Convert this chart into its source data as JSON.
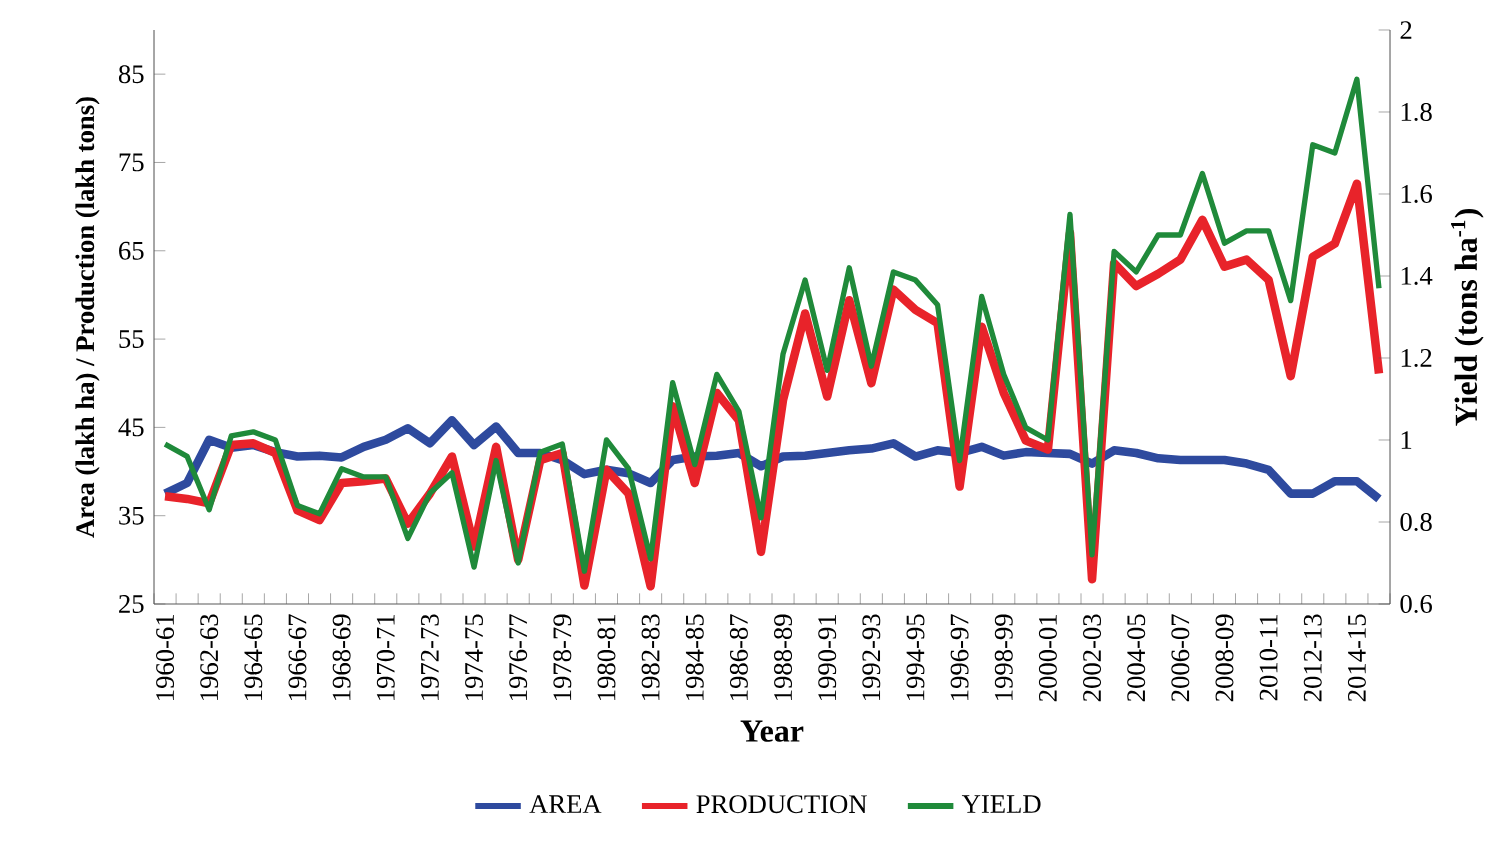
{
  "chart_data": {
    "type": "line",
    "xlabel": "Year",
    "ylabel": "Area (lakh ha) / Production (lakh tons)",
    "y2label": "Yield (tons ha$^{-1}$)",
    "categories": [
      "1960-61",
      null,
      "1962-63",
      null,
      "1964-65",
      null,
      "1966-67",
      null,
      "1968-69",
      null,
      "1970-71",
      null,
      "1972-73",
      null,
      "1974-75",
      null,
      "1976-77",
      null,
      "1978-79",
      null,
      "1980-81",
      null,
      "1982-83",
      null,
      "1984-85",
      null,
      "1986-87",
      null,
      "1988-89",
      null,
      "1990-91",
      null,
      "1992-93",
      null,
      "1994-95",
      null,
      "1996-97",
      null,
      "1998-99",
      null,
      "2000-01",
      null,
      "2002-03",
      null,
      "2004-05",
      null,
      "2006-07",
      null,
      "2008-09",
      null,
      "2010-11",
      null,
      "2012-13",
      null,
      "2014-15",
      null
    ],
    "series": [
      {
        "name": "AREA",
        "color": "#2e4a9e",
        "values": [
          37.5,
          38.7,
          43.6,
          42.7,
          43.0,
          42.2,
          41.7,
          41.8,
          41.6,
          42.8,
          43.6,
          44.9,
          43.2,
          45.8,
          43.0,
          45.1,
          42.1,
          42.1,
          41.3,
          39.7,
          40.2,
          39.8,
          38.7,
          41.3,
          41.7,
          41.8,
          42.1,
          40.6,
          41.7,
          41.8,
          42.1,
          42.4,
          42.6,
          43.2,
          41.7,
          42.4,
          42.1,
          42.8,
          41.8,
          42.2,
          42.1,
          42.0,
          40.9,
          42.4,
          42.1,
          41.5,
          41.3,
          41.3,
          41.3,
          40.9,
          40.2,
          37.5,
          37.5,
          38.9,
          38.9,
          36.9
        ]
      },
      {
        "name": "PRODUCTION",
        "color": "#e8232a",
        "values": [
          37.2,
          36.9,
          36.4,
          43.0,
          43.2,
          42.1,
          35.6,
          34.5,
          38.7,
          38.9,
          39.2,
          34.1,
          37.5,
          41.7,
          31.5,
          42.8,
          30.0,
          41.3,
          42.1,
          27.1,
          40.2,
          37.5,
          27.0,
          47.4,
          38.7,
          48.9,
          45.8,
          30.9,
          48.1,
          57.9,
          48.5,
          59.4,
          50.0,
          60.6,
          58.3,
          56.8,
          38.3,
          56.4,
          48.9,
          43.5,
          42.5,
          67.0,
          27.8,
          63.6,
          61.0,
          62.4,
          64.0,
          68.5,
          63.2,
          64.0,
          61.7,
          50.8,
          64.3,
          65.8,
          72.6,
          51.1
        ]
      },
      {
        "name": "YIELD",
        "color": "#1f8a3a",
        "axis": "y2",
        "values": [
          0.99,
          0.96,
          0.83,
          1.01,
          1.02,
          1.0,
          0.84,
          0.82,
          0.93,
          0.91,
          0.91,
          0.76,
          0.87,
          0.92,
          0.69,
          0.95,
          0.7,
          0.97,
          0.99,
          0.68,
          1.0,
          0.93,
          0.71,
          1.14,
          0.94,
          1.16,
          1.07,
          0.81,
          1.21,
          1.39,
          1.17,
          1.42,
          1.18,
          1.41,
          1.39,
          1.33,
          0.95,
          1.35,
          1.16,
          1.03,
          1.0,
          1.55,
          0.72,
          1.46,
          1.41,
          1.5,
          1.5,
          1.65,
          1.48,
          1.51,
          1.51,
          1.34,
          1.72,
          1.7,
          1.88,
          1.37
        ]
      }
    ],
    "ylim": [
      25,
      90
    ],
    "yticks": [
      25,
      35,
      45,
      55,
      65,
      75,
      85
    ],
    "y2lim": [
      0.6,
      2
    ],
    "y2ticks": [
      0.6,
      0.8,
      1,
      1.2,
      1.4,
      1.6,
      1.8,
      2
    ],
    "legend": "bottom"
  }
}
